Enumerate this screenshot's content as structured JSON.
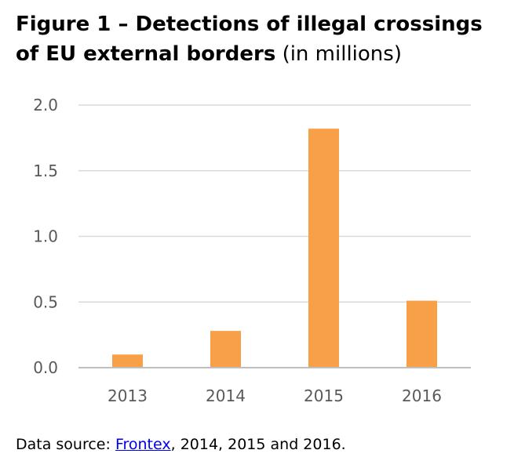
{
  "chart_data": {
    "type": "bar",
    "title": "Figure 1 – Detections of illegal crossings of EU external borders",
    "subtitle": "(in millions)",
    "categories": [
      "2013",
      "2014",
      "2015",
      "2016"
    ],
    "values": [
      0.1,
      0.28,
      1.82,
      0.51
    ],
    "ylim": [
      0,
      2.0
    ],
    "yticks": [
      0.0,
      0.5,
      1.0,
      1.5,
      2.0
    ],
    "ytick_labels": [
      "0.0",
      "0.5",
      "1.0",
      "1.5",
      "2.0"
    ],
    "grid": true,
    "bar_color": "#F7A048",
    "xlabel": "",
    "ylabel": ""
  },
  "source": {
    "prefix": "Data source: ",
    "link": "Frontex",
    "suffix": ", 2014, 2015 and 2016."
  }
}
